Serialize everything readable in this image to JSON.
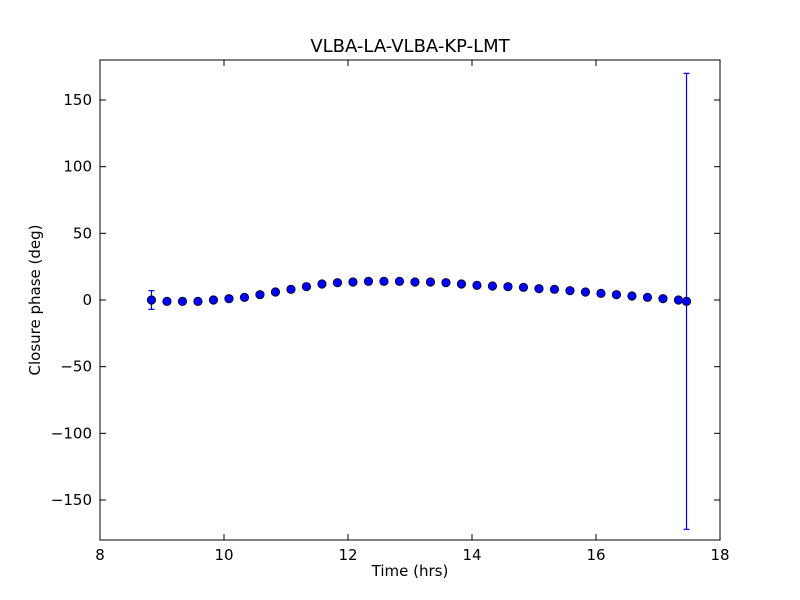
{
  "chart_data": {
    "type": "scatter",
    "title": "VLBA-LA-VLBA-KP-LMT",
    "xlabel": "Time (hrs)",
    "ylabel": "Closure phase (deg)",
    "xlim": [
      8,
      18
    ],
    "ylim": [
      -180,
      180
    ],
    "xticks": [
      8,
      10,
      12,
      14,
      16,
      18
    ],
    "xtick_labels": [
      "8",
      "10",
      "12",
      "14",
      "16",
      "18"
    ],
    "yticks": [
      150,
      100,
      50,
      0,
      -50,
      -100,
      -150
    ],
    "ytick_labels": [
      "150",
      "100",
      "50",
      "0",
      "−50",
      "−100",
      "−150"
    ],
    "grid": false,
    "marker_color": "#0000ff",
    "marker_edge_color": "#000000",
    "errorbar_color": "#0000ff",
    "series": [
      {
        "x": [
          8.83,
          9.08,
          9.33,
          9.58,
          9.83,
          10.08,
          10.33,
          10.58,
          10.83,
          11.08,
          11.33,
          11.58,
          11.83,
          12.08,
          12.33,
          12.58,
          12.83,
          13.08,
          13.33,
          13.58,
          13.83,
          14.08,
          14.33,
          14.58,
          14.83,
          15.08,
          15.33,
          15.58,
          15.83,
          16.08,
          16.33,
          16.58,
          16.83,
          17.08,
          17.33,
          17.46
        ],
        "y": [
          0,
          -1,
          -1,
          -1,
          0,
          1,
          2,
          4,
          6,
          8,
          10,
          12,
          13,
          13.5,
          14,
          14,
          14,
          13.5,
          13.5,
          13,
          12,
          11,
          10.5,
          10,
          9.5,
          8.5,
          8,
          7,
          6,
          5,
          4,
          3,
          2,
          1,
          0,
          -1
        ],
        "yerr": [
          7,
          null,
          null,
          null,
          null,
          null,
          null,
          null,
          null,
          null,
          null,
          null,
          null,
          null,
          null,
          null,
          null,
          null,
          null,
          null,
          null,
          null,
          null,
          null,
          null,
          null,
          null,
          null,
          null,
          null,
          null,
          null,
          null,
          null,
          null,
          171
        ]
      }
    ]
  }
}
